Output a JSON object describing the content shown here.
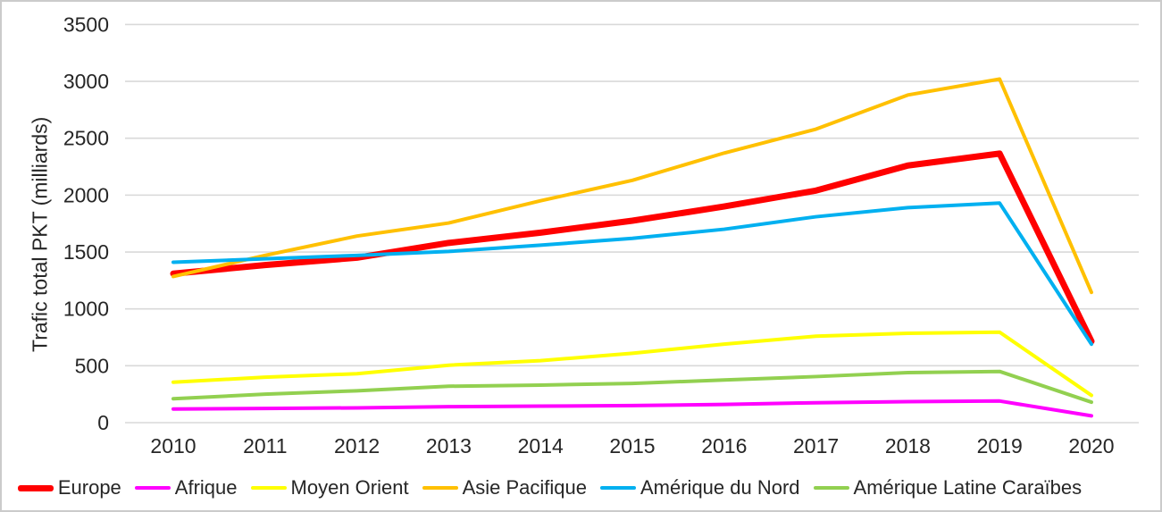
{
  "frame": {
    "background": "#FFFFFF",
    "border_color": "#CBCBCB"
  },
  "chart_data": {
    "type": "line",
    "title": "",
    "xlabel": "",
    "ylabel": "Trafic total PKT (milliards)",
    "ylim": [
      0,
      3500
    ],
    "ytick_step": 500,
    "ytick_labels": [
      "0",
      "500",
      "1000",
      "1500",
      "2000",
      "2500",
      "3000",
      "3500"
    ],
    "categories": [
      "2010",
      "2011",
      "2012",
      "2013",
      "2014",
      "2015",
      "2016",
      "2017",
      "2018",
      "2019",
      "2020"
    ],
    "grid": "horizontal",
    "gridline_color": "#D9D9D9",
    "legend_position": "bottom",
    "series": [
      {
        "name": "Europe",
        "color": "#FF0000",
        "stroke_width": 7,
        "values": [
          1310,
          1385,
          1450,
          1580,
          1670,
          1775,
          1900,
          2040,
          2260,
          2365,
          715
        ]
      },
      {
        "name": "Afrique",
        "color": "#FF00FF",
        "stroke_width": 4,
        "values": [
          120,
          125,
          130,
          140,
          145,
          150,
          160,
          175,
          185,
          190,
          60
        ]
      },
      {
        "name": "Moyen Orient",
        "color": "#FFFF00",
        "stroke_width": 4,
        "values": [
          355,
          400,
          430,
          505,
          545,
          610,
          690,
          760,
          785,
          795,
          240
        ]
      },
      {
        "name": "Asie Pacifique",
        "color": "#FFC000",
        "stroke_width": 4,
        "values": [
          1285,
          1470,
          1640,
          1755,
          1950,
          2130,
          2370,
          2580,
          2880,
          3020,
          1145
        ]
      },
      {
        "name": "Amérique du Nord",
        "color": "#00B0F0",
        "stroke_width": 4,
        "values": [
          1410,
          1440,
          1470,
          1505,
          1560,
          1620,
          1700,
          1810,
          1890,
          1930,
          690
        ]
      },
      {
        "name": "Amérique Latine Caraïbes",
        "color": "#92D050",
        "stroke_width": 4,
        "values": [
          210,
          250,
          280,
          320,
          330,
          345,
          375,
          405,
          440,
          450,
          180
        ]
      }
    ]
  }
}
